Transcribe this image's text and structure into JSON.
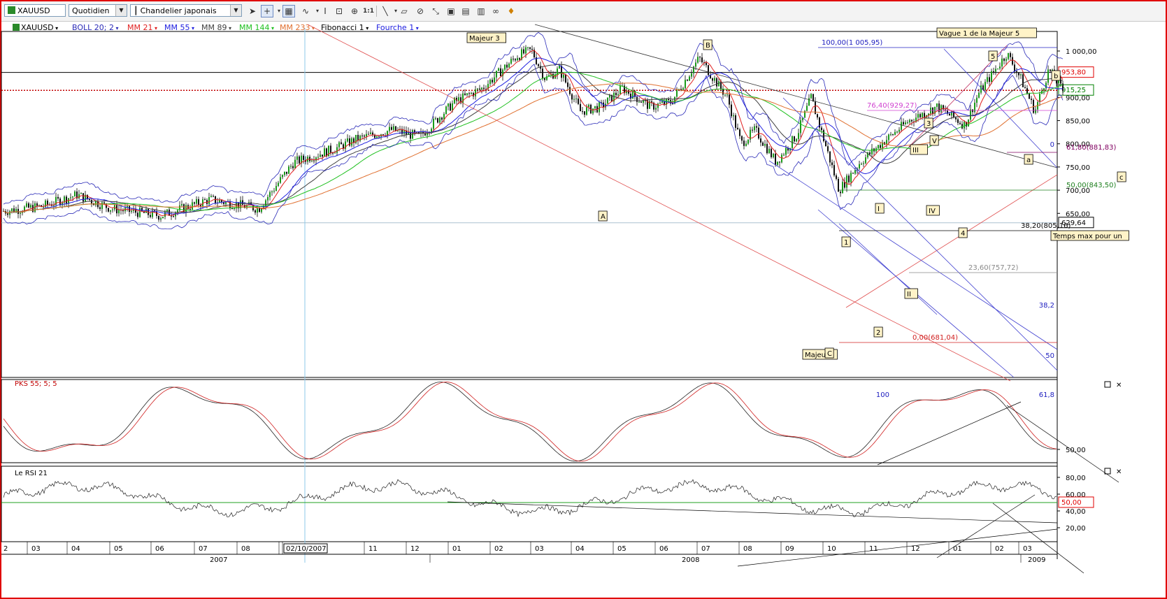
{
  "toolbar": {
    "symbol": "XAUUSD",
    "period": "Quotidien",
    "chart_style": "Chandelier japonais",
    "tools": [
      "cursor-icon",
      "crosshair-icon",
      "grid-icon",
      "indicator-icon",
      "text-tool-icon",
      "zoom-in-icon",
      "zoom-out-icon",
      "one-to-one-icon",
      "line-tool-icon",
      "eraser-icon",
      "lock-icon",
      "arrows-icon",
      "window-icon",
      "window-icon",
      "glasses-icon",
      "alert-icon"
    ]
  },
  "indicators": {
    "symbol": "XAUUSD",
    "items": [
      {
        "label": "BOLL",
        "params": "20; 2",
        "color": "#2b2bb8"
      },
      {
        "label": "MM 21",
        "color": "#e02020"
      },
      {
        "label": "MM 55",
        "color": "#2020e0"
      },
      {
        "label": "MM 89",
        "color": "#404040"
      },
      {
        "label": "MM 144",
        "color": "#20c020"
      },
      {
        "label": "MM 233",
        "color": "#e07030"
      },
      {
        "label": "Fibonacci 1",
        "color": "#000000"
      },
      {
        "label": "Fourche 1",
        "color": "#2020e0"
      }
    ]
  },
  "price_axis": {
    "ticks": [
      "1 000,00",
      "950,00",
      "900,00",
      "850,00",
      "800,00",
      "750,00",
      "700,00",
      "650,00"
    ],
    "markers": {
      "resistance": "953,80",
      "last": "915,25",
      "low": "629,64"
    },
    "colors": {
      "resistance": "#e00000",
      "last": "#008000",
      "low": "#000000"
    }
  },
  "annotations": {
    "boxes": [
      "Majeur 3",
      "B",
      "Vague 1 de la Majeur 5",
      "5",
      "b",
      "3",
      "III",
      "V",
      "a",
      "c",
      "A",
      "I",
      "IV",
      "4",
      "1",
      "II",
      "2",
      "Majeur4",
      "C",
      "Temps max pour un"
    ],
    "fib_labels": [
      "100,00(1 005,95)",
      "76,40(929,27)",
      "61,80(881,83)",
      "50,00(843,50)",
      "38,20(805,16)",
      "23,60(757,72)",
      "0,00(681,04)"
    ],
    "pitchfork_labels": [
      "0",
      "38,2",
      "50",
      "61,8",
      "100"
    ]
  },
  "pks": {
    "title": "PKS 55; 5; 5",
    "ticks": [
      "50,00"
    ]
  },
  "rsi": {
    "title": "Le RSI 21",
    "ticks": [
      "80,00",
      "60,00",
      "40,00",
      "20,00"
    ],
    "marker": "50,00"
  },
  "time_axis": {
    "months": [
      "2",
      "03",
      "04",
      "05",
      "06",
      "07",
      "08",
      "0",
      "02/10/2007",
      "11",
      "12",
      "01",
      "02",
      "03",
      "04",
      "05",
      "06",
      "07",
      "08",
      "09",
      "10",
      "11",
      "12",
      "01",
      "02",
      "03",
      "04"
    ],
    "years": [
      "2007",
      "2008",
      "2009"
    ]
  }
}
